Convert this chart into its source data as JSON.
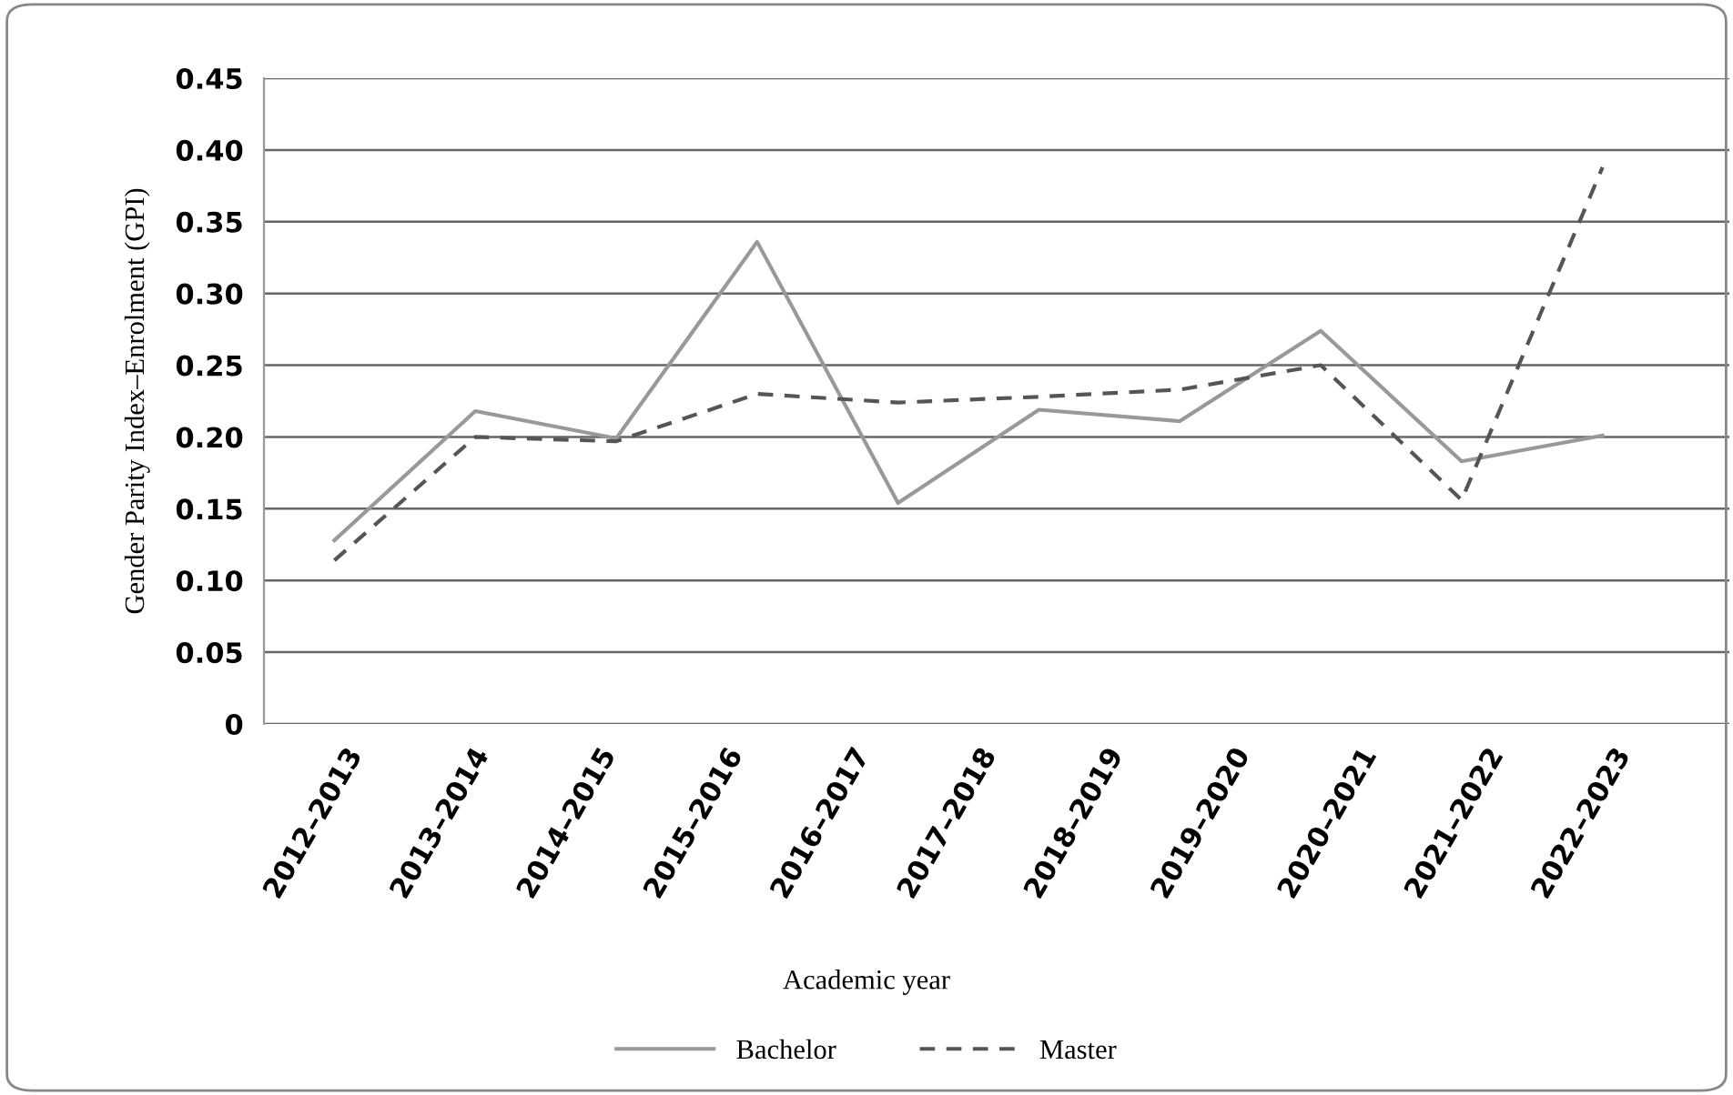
{
  "chart_data": {
    "type": "line",
    "ylabel": "Gender Parity Index–Enrolment (GPI)",
    "categories": [
      null,
      null,
      null,
      null,
      null,
      null,
      null,
      null,
      null,
      null
    ],
    "annotations": [
      "2012–2013",
      "2013–2014",
      "2014–2015",
      "2015–2016",
      "2016–2017",
      "2017–2018",
      "2018–2019",
      "2019–2020",
      "2020–2021",
      "2021–2022",
      "2022–2023",
      "Academic year"
    ],
    "series": [
      {
        "name": "Bachelor",
        "color": "#999999",
        "line_style": "solid",
        "values": [
          0.128,
          0.218,
          0.199,
          0.336,
          0.154,
          0.219,
          0.211,
          0.274,
          0.183,
          0.201
        ]
      },
      {
        "name": "Master",
        "color": "#555555",
        "line_style": "dashed",
        "values": [
          0.114,
          0.2,
          0.197,
          0.23,
          0.224,
          0.228,
          0.233,
          0.25,
          0.156,
          0.388
        ]
      }
    ],
    "ylim": [
      0,
      0.45
    ],
    "yticks": [
      {
        "value": 0,
        "label": "0"
      },
      {
        "value": 0.05,
        "label": "0.05"
      },
      {
        "value": 0.1,
        "label": "0.10"
      },
      {
        "value": 0.15,
        "label": "0.15"
      },
      {
        "value": 0.2,
        "label": "0.20"
      },
      {
        "value": 0.25,
        "label": "0.25"
      },
      {
        "value": 0.3,
        "label": "0.30"
      },
      {
        "value": 0.35,
        "label": "0.35"
      },
      {
        "value": 0.4,
        "label": "0.40"
      },
      {
        "value": 0.45,
        "label": "0.45"
      }
    ],
    "grid": "y",
    "legend": "bottom",
    "marker": "none"
  }
}
